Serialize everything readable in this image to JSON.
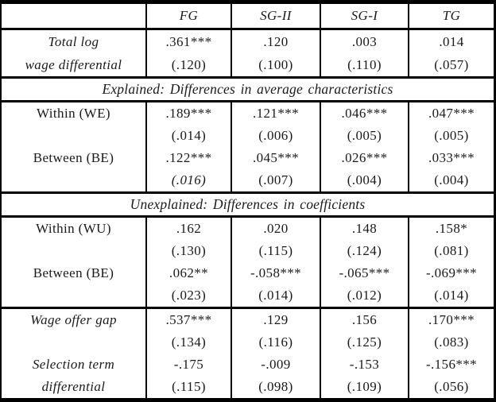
{
  "colors": {
    "border": "#000000",
    "text": "#1a1a1a",
    "background": "#ffffff"
  },
  "table": {
    "columns": [
      "FG",
      "SG-II",
      "SG-I",
      "TG"
    ],
    "sections": {
      "total": {
        "rows": [
          {
            "label": "Total log",
            "cells": [
              ".361***",
              ".120",
              ".003",
              ".014"
            ]
          },
          {
            "label": "wage differential",
            "cells": [
              "(.120)",
              "(.100)",
              "(.110)",
              "(.057)"
            ]
          }
        ]
      },
      "explained": {
        "banner": "Explained: Differences in average characteristics",
        "rows": [
          {
            "label": "Within (WE)",
            "cells": [
              ".189***",
              ".121***",
              ".046***",
              ".047***"
            ]
          },
          {
            "label": "",
            "cells": [
              "(.014)",
              "(.006)",
              "(.005)",
              "(.005)"
            ]
          },
          {
            "label": "Between (BE)",
            "cells": [
              ".122***",
              ".045***",
              ".026***",
              ".033***"
            ]
          },
          {
            "label": "",
            "cells": [
              "(.016)",
              "(.007)",
              "(.004)",
              "(.004)"
            ]
          }
        ]
      },
      "unexplained": {
        "banner": "Unexplained: Differences in coefficients",
        "rows": [
          {
            "label": "Within (WU)",
            "cells": [
              ".162",
              ".020",
              ".148",
              ".158*"
            ]
          },
          {
            "label": "",
            "cells": [
              "(.130)",
              "(.115)",
              "(.124)",
              "(.081)"
            ]
          },
          {
            "label": "Between (BE)",
            "cells": [
              ".062**",
              "-.058***",
              "-.065***",
              "-.069***"
            ]
          },
          {
            "label": "",
            "cells": [
              "(.023)",
              "(.014)",
              "(.012)",
              "(.014)"
            ]
          }
        ]
      },
      "summary": {
        "rows": [
          {
            "label": "Wage offer gap",
            "cells": [
              ".537***",
              ".129",
              ".156",
              ".170***"
            ]
          },
          {
            "label": "",
            "cells": [
              "(.134)",
              "(.116)",
              "(.125)",
              "(.083)"
            ]
          },
          {
            "label": "Selection term",
            "cells": [
              "-.175",
              "-.009",
              "-.153",
              "-.156***"
            ]
          },
          {
            "label": "differential",
            "cells": [
              "(.115)",
              "(.098)",
              "(.109)",
              "(.056)"
            ]
          }
        ]
      }
    }
  }
}
